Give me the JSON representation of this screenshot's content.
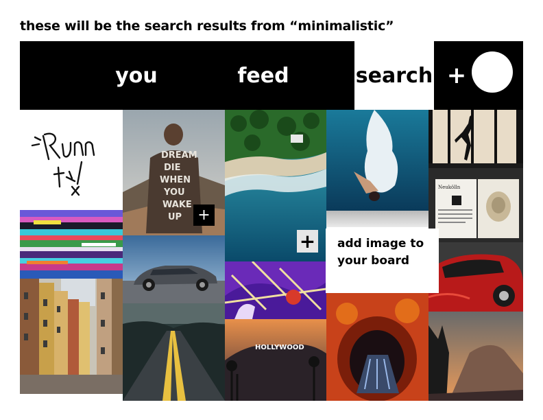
{
  "caption": "these will be the search results from “minimalistic”",
  "nav": {
    "you": "you",
    "feed": "feed",
    "search": "search",
    "add": "+",
    "avatar_icon": "profile-avatar"
  },
  "tiles": [
    {
      "name": "tile-run-it-sketch",
      "icon": "ink-sketch"
    },
    {
      "name": "tile-dream-jacket"
    },
    {
      "name": "tile-aerial-beach"
    },
    {
      "name": "tile-diver-splash"
    },
    {
      "name": "tile-dancer-silhouette"
    },
    {
      "name": "tile-glitch-art"
    },
    {
      "name": "tile-silver-car"
    },
    {
      "name": "tile-magazine-spread"
    },
    {
      "name": "tile-city-street"
    },
    {
      "name": "tile-purple-abstract"
    },
    {
      "name": "tile-red-car"
    },
    {
      "name": "tile-desert-road"
    },
    {
      "name": "tile-hollywood-sign"
    },
    {
      "name": "tile-fire-tunnel"
    },
    {
      "name": "tile-mountain-sunset"
    }
  ],
  "add_buttons": [
    "+",
    "+"
  ],
  "popup": {
    "line1": "add image to",
    "line2": "your board"
  },
  "colors": {
    "nav_bg": "#000000",
    "nav_active_bg": "#ffffff"
  }
}
